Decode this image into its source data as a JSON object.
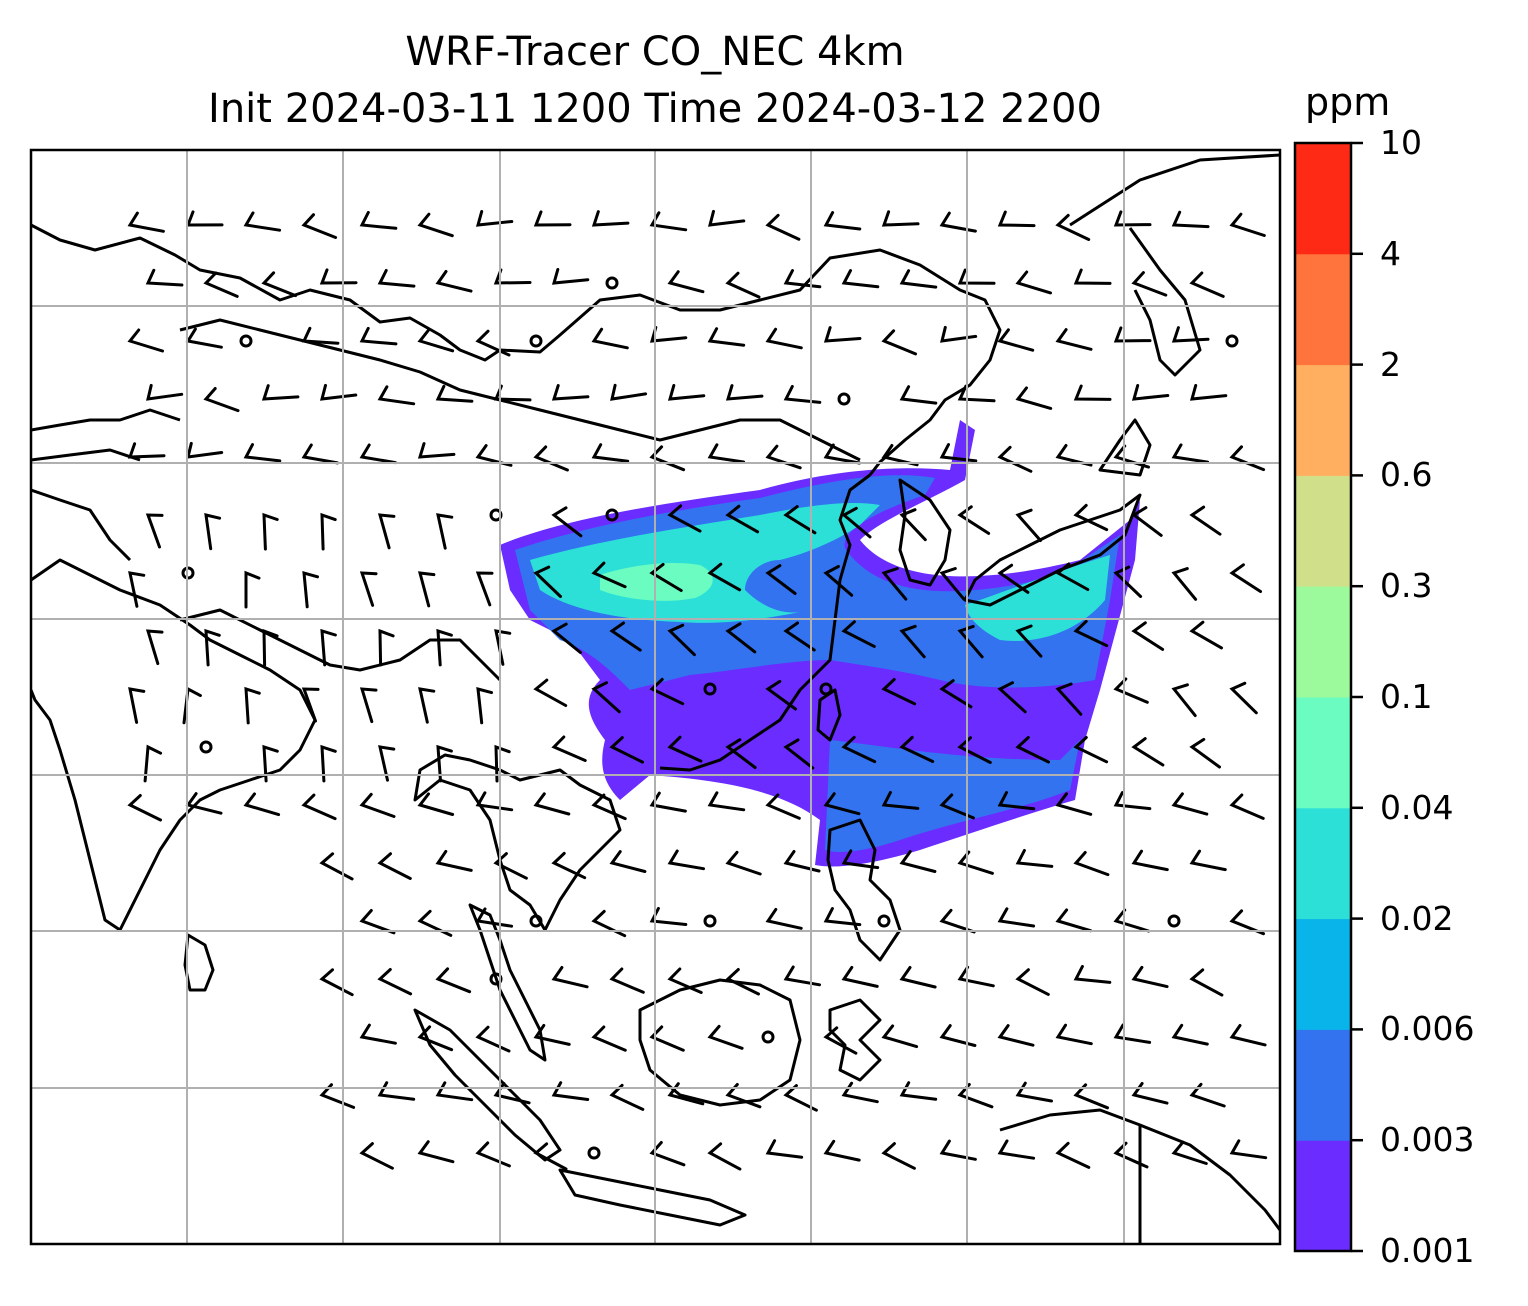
{
  "title": {
    "line1": "WRF-Tracer CO_NEC 4km",
    "line2": "Init 2024-03-11 1200 Time 2024-03-12 2200"
  },
  "colorbar": {
    "unit": "ppm",
    "levels": [
      "0.001",
      "0.003",
      "0.006",
      "0.02",
      "0.04",
      "0.1",
      "0.3",
      "0.6",
      "2",
      "4",
      "10"
    ],
    "colors": [
      "#6a2cff",
      "#3373f0",
      "#08b4ea",
      "#2ce0d8",
      "#6afcc0",
      "#9cfa9c",
      "#d0e08a",
      "#ffaf5f",
      "#ff743c",
      "#ff2a16"
    ]
  },
  "map": {
    "gridlines": true,
    "coastlines": true,
    "features": [
      "wind-barbs",
      "co-tracer-plume"
    ]
  }
}
